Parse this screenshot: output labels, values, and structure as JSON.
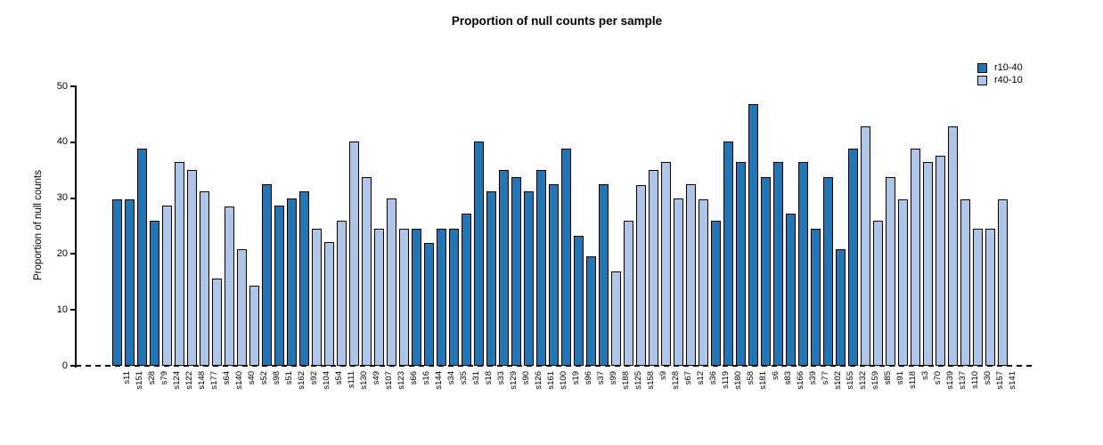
{
  "chart_data": {
    "type": "bar",
    "title": "Proportion of null counts per sample",
    "xlabel": "",
    "ylabel": "Proportion of null counts",
    "ylim": [
      0,
      50
    ],
    "yticks": [
      0,
      10,
      20,
      30,
      40,
      50
    ],
    "grid": false,
    "zero_line_style": "dashed",
    "bar_border_color": "#000000",
    "legend": {
      "position": "top-right",
      "entries": [
        {
          "name": "r10-40",
          "color": "#2176b5"
        },
        {
          "name": "r40-10",
          "color": "#aec6e8"
        }
      ]
    },
    "samples": [
      {
        "label": "s11",
        "value": 29.8,
        "group": "r10-40"
      },
      {
        "label": "s151",
        "value": 29.8,
        "group": "r10-40"
      },
      {
        "label": "s28",
        "value": 38.9,
        "group": "r10-40"
      },
      {
        "label": "s79",
        "value": 26.0,
        "group": "r10-40"
      },
      {
        "label": "s124",
        "value": 28.6,
        "group": "r40-10"
      },
      {
        "label": "s122",
        "value": 36.4,
        "group": "r40-10"
      },
      {
        "label": "s148",
        "value": 35.0,
        "group": "r40-10"
      },
      {
        "label": "s177",
        "value": 31.2,
        "group": "r40-10"
      },
      {
        "label": "s64",
        "value": 15.6,
        "group": "r40-10"
      },
      {
        "label": "s140",
        "value": 28.5,
        "group": "r40-10"
      },
      {
        "label": "s40",
        "value": 20.8,
        "group": "r40-10"
      },
      {
        "label": "s52",
        "value": 14.3,
        "group": "r40-10"
      },
      {
        "label": "s98",
        "value": 32.5,
        "group": "r10-40"
      },
      {
        "label": "s51",
        "value": 28.6,
        "group": "r10-40"
      },
      {
        "label": "s162",
        "value": 29.9,
        "group": "r10-40"
      },
      {
        "label": "s92",
        "value": 31.2,
        "group": "r10-40"
      },
      {
        "label": "s104",
        "value": 24.6,
        "group": "r40-10"
      },
      {
        "label": "s54",
        "value": 22.1,
        "group": "r40-10"
      },
      {
        "label": "s111",
        "value": 26.0,
        "group": "r40-10"
      },
      {
        "label": "s130",
        "value": 40.2,
        "group": "r40-10"
      },
      {
        "label": "s49",
        "value": 33.8,
        "group": "r40-10"
      },
      {
        "label": "s107",
        "value": 24.6,
        "group": "r40-10"
      },
      {
        "label": "s123",
        "value": 29.9,
        "group": "r40-10"
      },
      {
        "label": "s66",
        "value": 24.6,
        "group": "r40-10"
      },
      {
        "label": "s16",
        "value": 24.6,
        "group": "r10-40"
      },
      {
        "label": "s144",
        "value": 22.0,
        "group": "r10-40"
      },
      {
        "label": "s34",
        "value": 24.6,
        "group": "r10-40"
      },
      {
        "label": "s35",
        "value": 24.6,
        "group": "r10-40"
      },
      {
        "label": "s31",
        "value": 27.3,
        "group": "r10-40"
      },
      {
        "label": "s18",
        "value": 40.2,
        "group": "r10-40"
      },
      {
        "label": "s33",
        "value": 31.2,
        "group": "r10-40"
      },
      {
        "label": "s129",
        "value": 35.0,
        "group": "r10-40"
      },
      {
        "label": "s90",
        "value": 33.7,
        "group": "r10-40"
      },
      {
        "label": "s126",
        "value": 31.2,
        "group": "r10-40"
      },
      {
        "label": "s161",
        "value": 35.0,
        "group": "r10-40"
      },
      {
        "label": "s100",
        "value": 32.5,
        "group": "r10-40"
      },
      {
        "label": "s19",
        "value": 38.9,
        "group": "r10-40"
      },
      {
        "label": "s96",
        "value": 23.3,
        "group": "r10-40"
      },
      {
        "label": "s37",
        "value": 19.6,
        "group": "r10-40"
      },
      {
        "label": "s99",
        "value": 32.5,
        "group": "r10-40"
      },
      {
        "label": "s188",
        "value": 16.9,
        "group": "r40-10"
      },
      {
        "label": "s125",
        "value": 26.0,
        "group": "r40-10"
      },
      {
        "label": "s158",
        "value": 32.4,
        "group": "r40-10"
      },
      {
        "label": "s9",
        "value": 35.0,
        "group": "r40-10"
      },
      {
        "label": "s128",
        "value": 36.4,
        "group": "r40-10"
      },
      {
        "label": "s67",
        "value": 29.9,
        "group": "r40-10"
      },
      {
        "label": "s12",
        "value": 32.5,
        "group": "r40-10"
      },
      {
        "label": "s36",
        "value": 29.8,
        "group": "r40-10"
      },
      {
        "label": "s119",
        "value": 26.0,
        "group": "r10-40"
      },
      {
        "label": "s180",
        "value": 40.2,
        "group": "r10-40"
      },
      {
        "label": "s58",
        "value": 36.4,
        "group": "r10-40"
      },
      {
        "label": "s181",
        "value": 46.8,
        "group": "r10-40"
      },
      {
        "label": "s6",
        "value": 33.7,
        "group": "r10-40"
      },
      {
        "label": "s83",
        "value": 36.4,
        "group": "r10-40"
      },
      {
        "label": "s166",
        "value": 27.3,
        "group": "r10-40"
      },
      {
        "label": "s39",
        "value": 36.4,
        "group": "r10-40"
      },
      {
        "label": "s77",
        "value": 24.6,
        "group": "r10-40"
      },
      {
        "label": "s102",
        "value": 33.7,
        "group": "r10-40"
      },
      {
        "label": "s155",
        "value": 20.8,
        "group": "r10-40"
      },
      {
        "label": "s132",
        "value": 38.9,
        "group": "r10-40"
      },
      {
        "label": "s159",
        "value": 42.8,
        "group": "r40-10"
      },
      {
        "label": "s85",
        "value": 26.0,
        "group": "r40-10"
      },
      {
        "label": "s91",
        "value": 33.7,
        "group": "r40-10"
      },
      {
        "label": "s118",
        "value": 29.8,
        "group": "r40-10"
      },
      {
        "label": "s3",
        "value": 38.9,
        "group": "r40-10"
      },
      {
        "label": "s70",
        "value": 36.4,
        "group": "r40-10"
      },
      {
        "label": "s139",
        "value": 37.6,
        "group": "r40-10"
      },
      {
        "label": "s137",
        "value": 42.8,
        "group": "r40-10"
      },
      {
        "label": "s110",
        "value": 29.8,
        "group": "r40-10"
      },
      {
        "label": "s30",
        "value": 24.6,
        "group": "r40-10"
      },
      {
        "label": "s157",
        "value": 24.6,
        "group": "r40-10"
      },
      {
        "label": "s141",
        "value": 29.8,
        "group": "r40-10"
      }
    ]
  }
}
